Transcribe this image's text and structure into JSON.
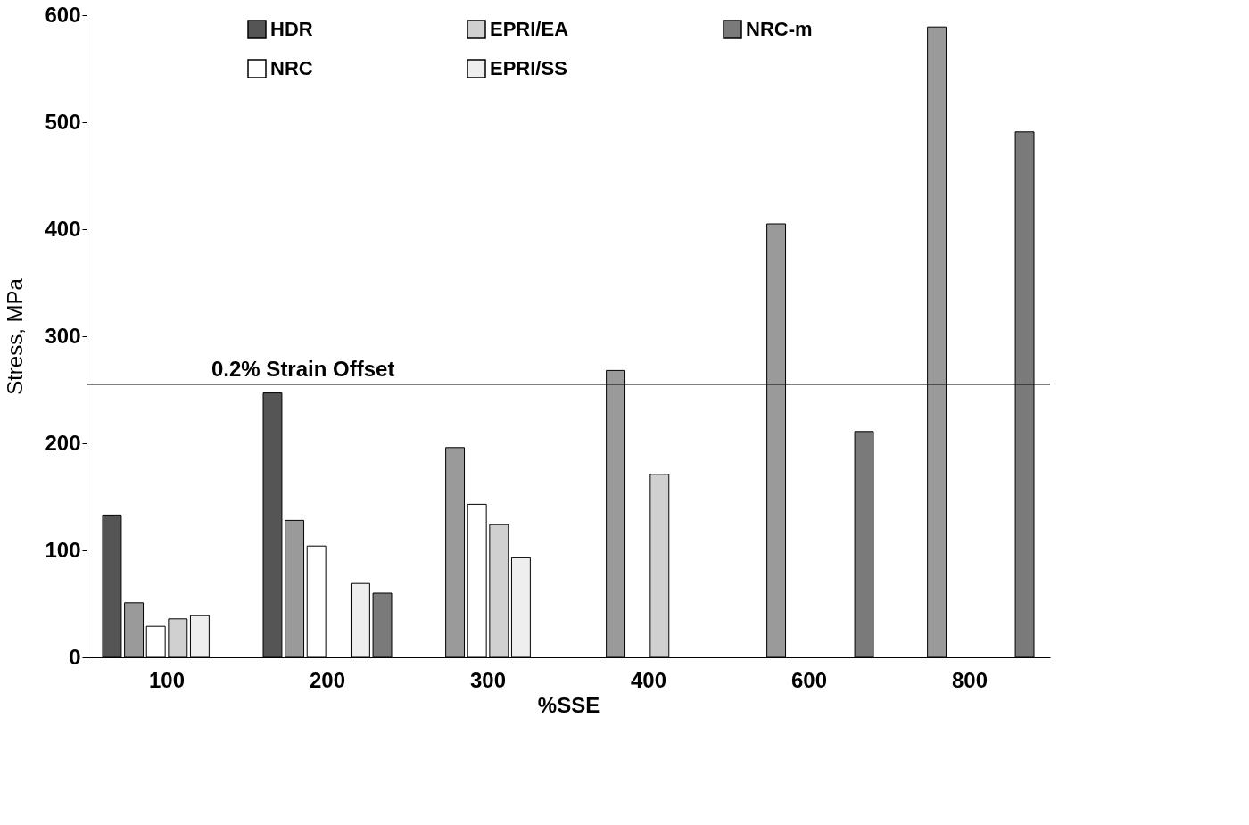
{
  "chart_data": {
    "type": "bar",
    "xlabel": "%SSE",
    "ylabel": "Stress, MPa",
    "categories": [
      "100",
      "200",
      "300",
      "400",
      "600",
      "800"
    ],
    "series": [
      {
        "name": "HDR",
        "color": "#555555",
        "values": [
          133,
          247,
          null,
          null,
          null,
          null
        ]
      },
      {
        "color": "#9a9a9a",
        "values": [
          51,
          128,
          196,
          268,
          405,
          589
        ]
      },
      {
        "name": "NRC",
        "color": "#ffffff",
        "values": [
          29,
          104,
          143,
          null,
          null,
          null
        ]
      },
      {
        "name": "EPRI/EA",
        "color": "#d0d0d0",
        "values": [
          36,
          null,
          124,
          171,
          null,
          null
        ]
      },
      {
        "name": "EPRI/SS",
        "color": "#eeeeee",
        "values": [
          39,
          69,
          93,
          null,
          null,
          null
        ]
      },
      {
        "name": "NRC-m",
        "color": "#7a7a7a",
        "values": [
          null,
          60,
          null,
          null,
          211,
          491
        ]
      }
    ],
    "ylim": [
      0,
      600
    ],
    "yticks": [
      0,
      100,
      200,
      300,
      400,
      500,
      600
    ],
    "ref_lines": [
      {
        "axis": "y",
        "value": 255,
        "label": "0.2% Strain Offset",
        "color": "#000000"
      }
    ],
    "grid": false,
    "legend": "top"
  }
}
